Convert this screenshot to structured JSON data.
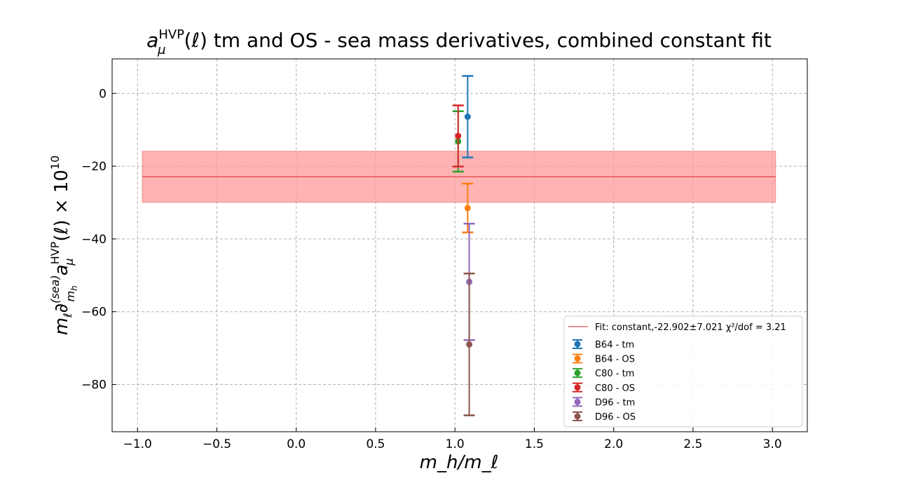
{
  "chart_data": {
    "type": "scatter",
    "title": "a_μ^HVP(ℓ) tm and OS - sea mass derivatives, combined constant fit",
    "xlabel": "m_h/m_ℓ",
    "ylabel": "m_ℓ ∂^(sea)_(m_h) a_μ^HVP(ℓ) × 10^10",
    "xlim": [
      -1.16,
      3.22
    ],
    "ylim": [
      -93,
      9.5
    ],
    "xticks": [
      -1.0,
      -0.5,
      0.0,
      0.5,
      1.0,
      1.5,
      2.0,
      2.5,
      3.0
    ],
    "xtick_labels": [
      "−1.0",
      "−0.5",
      "0.0",
      "0.5",
      "1.0",
      "1.5",
      "2.0",
      "2.5",
      "3.0"
    ],
    "yticks": [
      0,
      -20,
      -40,
      -60,
      -80
    ],
    "ytick_labels": [
      "0",
      "−20",
      "−40",
      "−60",
      "−80"
    ],
    "grid": true,
    "legend_position": "lower-right",
    "fit": {
      "label": "Fit: constant,-22.902±7.021 χ²/dof = 3.21",
      "value": -22.902,
      "error": 7.021,
      "chi2_dof": 3.21,
      "x_range": [
        -0.97,
        3.02
      ],
      "color": "#d62728",
      "band_color": "#ff9999"
    },
    "series": [
      {
        "name": "B64 - tm",
        "x": 1.08,
        "y": -6.4,
        "err": 11.2,
        "color": "#1f77b4"
      },
      {
        "name": "B64 - OS",
        "x": 1.08,
        "y": -31.5,
        "err": 6.7,
        "color": "#ff7f0e"
      },
      {
        "name": "C80 - tm",
        "x": 1.02,
        "y": -13.2,
        "err": 8.3,
        "color": "#2ca02c"
      },
      {
        "name": "C80 - OS",
        "x": 1.02,
        "y": -11.7,
        "err": 8.4,
        "color": "#d62728"
      },
      {
        "name": "D96 - tm",
        "x": 1.09,
        "y": -51.8,
        "err": 16.0,
        "color": "#9467bd"
      },
      {
        "name": "D96 - OS",
        "x": 1.09,
        "y": -69.0,
        "err": 19.5,
        "color": "#8c564b"
      }
    ]
  }
}
